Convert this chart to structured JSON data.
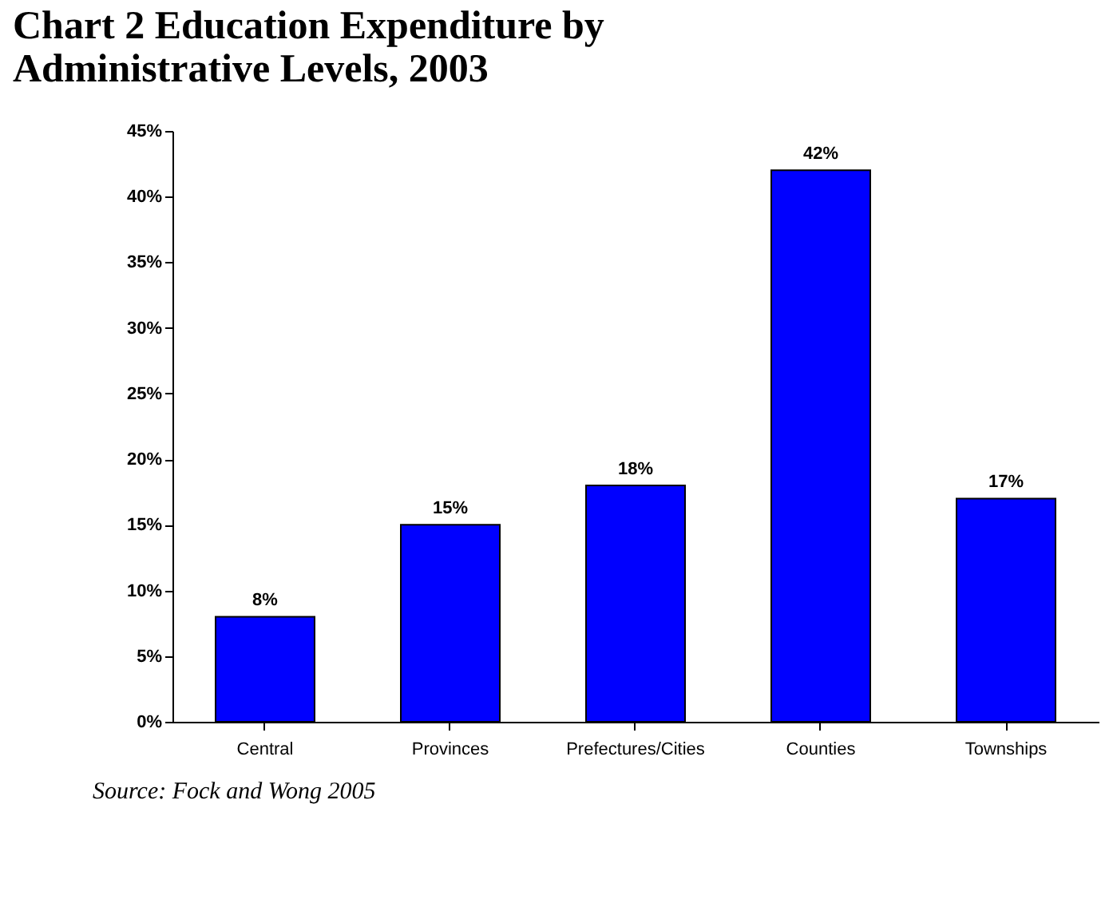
{
  "chart_data": {
    "type": "bar",
    "title": "Chart 2   Education Expenditure by Administrative Levels, 2003",
    "categories": [
      "Central",
      "Provinces",
      "Prefectures/Cities",
      "Counties",
      "Townships"
    ],
    "values": [
      8,
      15,
      18,
      42,
      17
    ],
    "value_labels": [
      "8%",
      "15%",
      "18%",
      "42%",
      "17%"
    ],
    "color": "#0000ff",
    "ylim": [
      0,
      45
    ],
    "yticks": [
      {
        "value": 0,
        "label": "0%"
      },
      {
        "value": 5,
        "label": "5%"
      },
      {
        "value": 10,
        "label": "10%"
      },
      {
        "value": 15,
        "label": "15%"
      },
      {
        "value": 20,
        "label": "20%"
      },
      {
        "value": 25,
        "label": "25%"
      },
      {
        "value": 30,
        "label": "30%"
      },
      {
        "value": 35,
        "label": "35%"
      },
      {
        "value": 40,
        "label": "40%"
      },
      {
        "value": 45,
        "label": "45%"
      }
    ],
    "grid": false,
    "annotations": [
      "Source: Fock and Wong 2005"
    ]
  }
}
